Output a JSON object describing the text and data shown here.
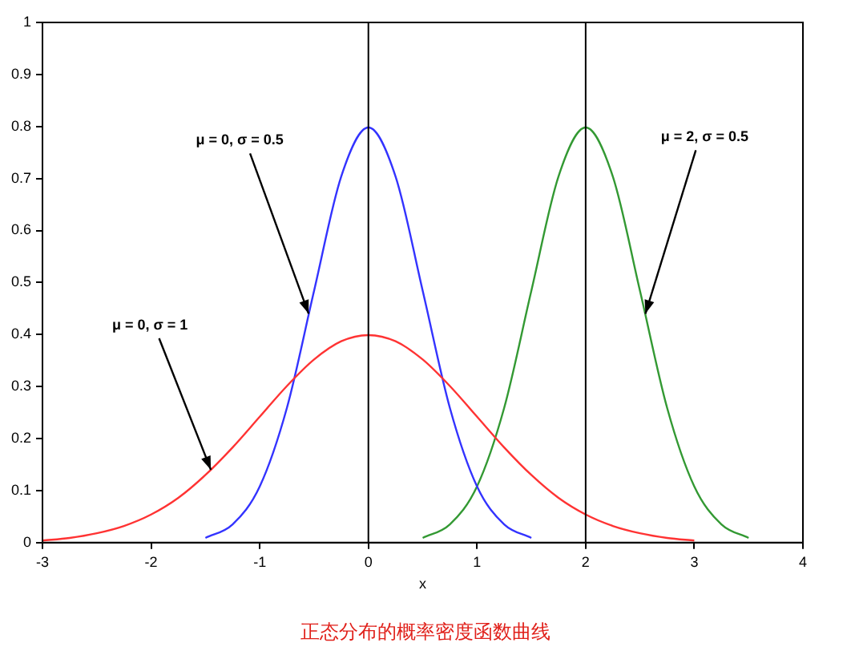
{
  "chart_data": {
    "type": "line",
    "xlabel": "x",
    "series": [
      {
        "color": "#ff3333",
        "x": [
          -3,
          -2.75,
          -2.5,
          -2.25,
          -2,
          -1.75,
          -1.5,
          -1.25,
          -1,
          -0.75,
          -0.5,
          -0.25,
          0,
          0.25,
          0.5,
          0.75,
          1,
          1.25,
          1.5,
          1.75,
          2,
          2.25,
          2.5,
          2.75,
          3
        ],
        "values": [
          0.004,
          0.009,
          0.018,
          0.032,
          0.054,
          0.086,
          0.13,
          0.183,
          0.242,
          0.301,
          0.352,
          0.387,
          0.399,
          0.387,
          0.352,
          0.301,
          0.242,
          0.183,
          0.13,
          0.086,
          0.054,
          0.032,
          0.018,
          0.009,
          0.004
        ]
      },
      {
        "color": "#3333ff",
        "x": [
          -1.5,
          -1.25,
          -1,
          -0.75,
          -0.5,
          -0.25,
          0,
          0.25,
          0.5,
          0.75,
          1,
          1.25,
          1.5
        ],
        "values": [
          0.009,
          0.035,
          0.108,
          0.259,
          0.484,
          0.704,
          0.798,
          0.704,
          0.484,
          0.259,
          0.108,
          0.035,
          0.009
        ]
      },
      {
        "color": "#339933",
        "x": [
          0.5,
          0.75,
          1,
          1.25,
          1.5,
          1.75,
          2,
          2.25,
          2.5,
          2.75,
          3,
          3.25,
          3.5
        ],
        "values": [
          0.009,
          0.035,
          0.108,
          0.259,
          0.484,
          0.704,
          0.798,
          0.704,
          0.484,
          0.259,
          0.108,
          0.035,
          0.009
        ]
      }
    ],
    "xlim": [
      -3,
      4
    ],
    "xticks": [
      -3,
      -2,
      -1,
      0,
      1,
      2,
      3,
      4
    ],
    "ylim": [
      0,
      1
    ],
    "yticks": [
      0,
      0.1,
      0.2,
      0.3,
      0.4,
      0.5,
      0.6,
      0.7,
      0.8,
      0.9,
      1
    ],
    "grid": false,
    "legend": false,
    "marker": "none",
    "line_style": "solid",
    "ref_lines": [
      {
        "axis": "x",
        "value": 0,
        "color": "#000000"
      },
      {
        "axis": "x",
        "value": 2,
        "color": "#000000"
      }
    ],
    "annotations": [
      {
        "text": "μ = 0, σ = 0.5",
        "x": -0.55,
        "y": 0.44
      },
      {
        "text": "μ = 0, σ = 1",
        "x": -1.45,
        "y": 0.14
      },
      {
        "text": "μ = 2, σ = 0.5",
        "x": 2.55,
        "y": 0.44
      },
      "正态分布的概率密度函数曲线"
    ]
  }
}
